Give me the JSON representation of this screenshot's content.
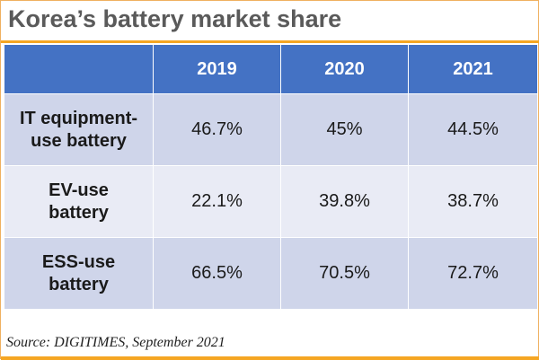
{
  "chart_data": {
    "type": "table",
    "title": "Korea’s battery market share",
    "columns": [
      "2019",
      "2020",
      "2021"
    ],
    "rows": [
      {
        "label_lines": [
          "IT equipment-",
          "use battery"
        ],
        "values": [
          "46.7%",
          "45%",
          "44.5%"
        ]
      },
      {
        "label_lines": [
          "EV-use",
          "battery"
        ],
        "values": [
          "22.1%",
          "39.8%",
          "38.7%"
        ]
      },
      {
        "label_lines": [
          "ESS-use",
          "battery"
        ],
        "values": [
          "66.5%",
          "70.5%",
          "72.7%"
        ]
      }
    ],
    "source": "Source: DIGITIMES, September 2021"
  },
  "colors": {
    "header": "#4472c4",
    "row_dark": "#cfd5ea",
    "row_light": "#e9ebf5",
    "accent": "#f5a623"
  }
}
